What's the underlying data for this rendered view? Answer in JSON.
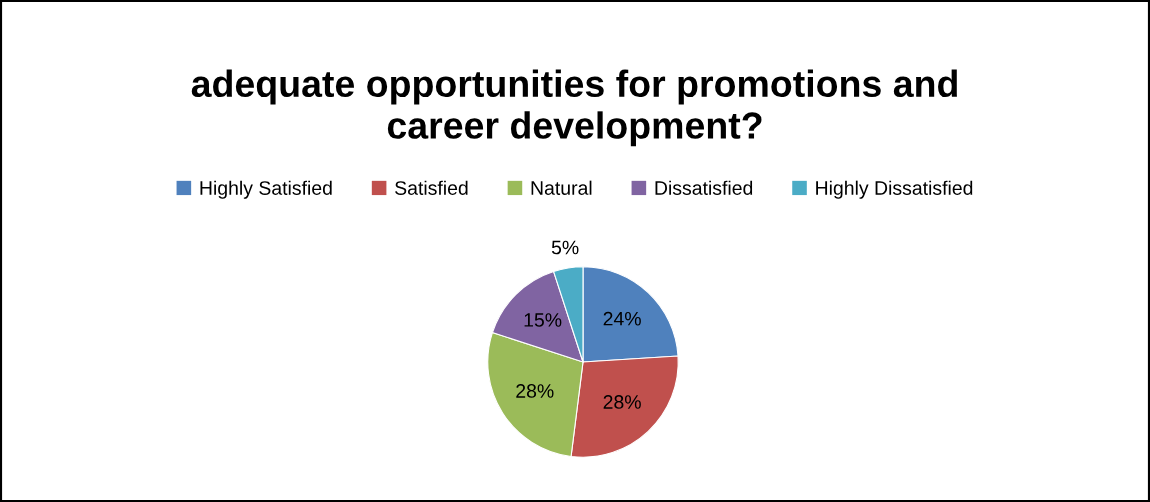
{
  "chart_data": {
    "type": "pie",
    "title": "adequate opportunities for promotions and\ncareer development?",
    "categories": [
      "Highly Satisfied",
      "Satisfied",
      "Natural",
      "Dissatisfied",
      "Highly Dissatisfied"
    ],
    "values": [
      24,
      28,
      28,
      15,
      5
    ],
    "colors": [
      "#4f81bd",
      "#c0504d",
      "#9bbb59",
      "#8064a2",
      "#4bacc6"
    ],
    "value_labels": [
      "24%",
      "28%",
      "28%",
      "15%",
      "5%"
    ],
    "legend": "top"
  }
}
